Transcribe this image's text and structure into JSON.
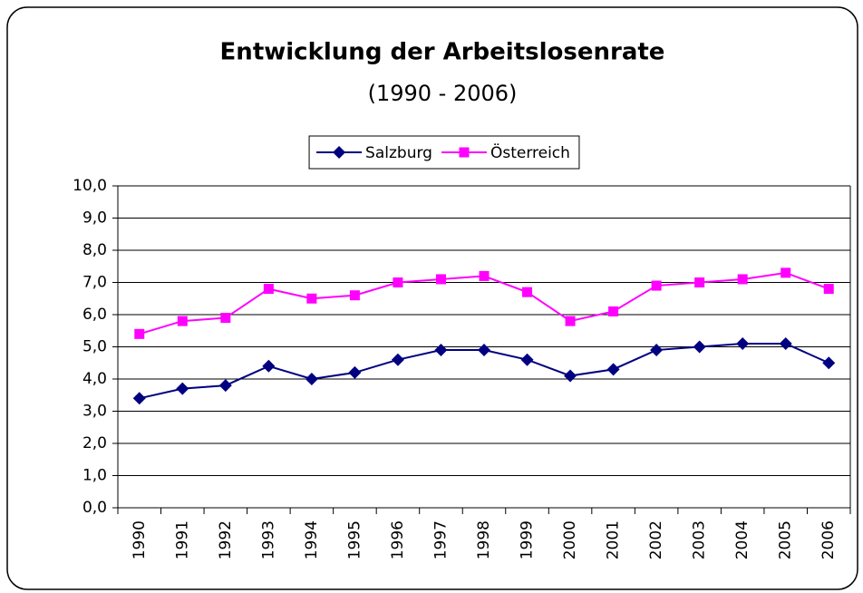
{
  "chart_data": {
    "type": "line",
    "title": "Entwicklung der Arbeitslosenrate",
    "subtitle": "(1990 - 2006)",
    "categories": [
      "1990",
      "1991",
      "1992",
      "1993",
      "1994",
      "1995",
      "1996",
      "1997",
      "1998",
      "1999",
      "2000",
      "2001",
      "2002",
      "2003",
      "2004",
      "2005",
      "2006"
    ],
    "series": [
      {
        "name": "Salzburg",
        "color": "#000080",
        "marker": "diamond",
        "values": [
          3.4,
          3.7,
          3.8,
          4.4,
          4.0,
          4.2,
          4.6,
          4.9,
          4.9,
          4.6,
          4.1,
          4.3,
          4.9,
          5.0,
          5.1,
          5.1,
          4.5
        ]
      },
      {
        "name": "Österreich",
        "color": "#ff00ff",
        "marker": "square",
        "values": [
          5.4,
          5.8,
          5.9,
          6.8,
          6.5,
          6.6,
          7.0,
          7.1,
          7.2,
          6.7,
          5.8,
          6.1,
          6.9,
          7.0,
          7.1,
          7.3,
          6.8
        ]
      }
    ],
    "ylim": [
      0,
      10
    ],
    "yticks": [
      {
        "value": 0,
        "label": "0,0"
      },
      {
        "value": 1,
        "label": "1,0"
      },
      {
        "value": 2,
        "label": "2,0"
      },
      {
        "value": 3,
        "label": "3,0"
      },
      {
        "value": 4,
        "label": "4,0"
      },
      {
        "value": 5,
        "label": "5,0"
      },
      {
        "value": 6,
        "label": "6,0"
      },
      {
        "value": 7,
        "label": "7,0"
      },
      {
        "value": 8,
        "label": "8,0"
      },
      {
        "value": 9,
        "label": "9,0"
      },
      {
        "value": 10,
        "label": "10,0"
      }
    ],
    "grid": true,
    "legend": "top"
  }
}
